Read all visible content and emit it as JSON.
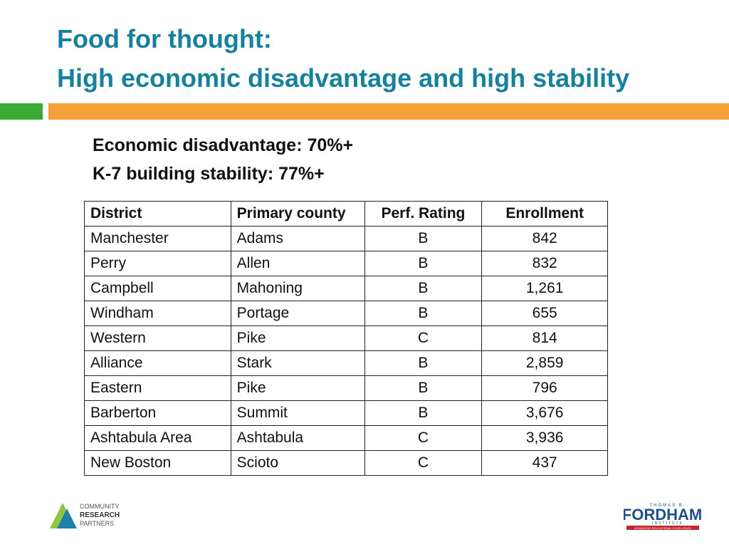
{
  "header": {
    "title_lines": [
      "Food for thought:",
      "High economic disadvantage and high stability"
    ]
  },
  "criteria": [
    "Economic disadvantage: 70%+",
    "K-7 building stability: 77%+"
  ],
  "table": {
    "columns": [
      "District",
      "Primary county",
      "Perf. Rating",
      "Enrollment"
    ],
    "rows": [
      [
        "Manchester",
        "Adams",
        "B",
        "842"
      ],
      [
        "Perry",
        "Allen",
        "B",
        "832"
      ],
      [
        "Campbell",
        "Mahoning",
        "B",
        "1,261"
      ],
      [
        "Windham",
        "Portage",
        "B",
        "655"
      ],
      [
        "Western",
        "Pike",
        "C",
        "814"
      ],
      [
        "Alliance",
        "Stark",
        "B",
        "2,859"
      ],
      [
        "Eastern",
        "Pike",
        "B",
        "796"
      ],
      [
        "Barberton",
        "Summit",
        "B",
        "3,676"
      ],
      [
        "Ashtabula Area",
        "Ashtabula",
        "C",
        "3,936"
      ],
      [
        "New Boston",
        "Scioto",
        "C",
        "437"
      ]
    ]
  },
  "logos": {
    "left": [
      "COMMUNITY",
      "RESEARCH",
      "PARTNERS"
    ],
    "right": {
      "top": "THOMAS B.",
      "name": "FORDHAM",
      "sub": "INSTITUTE",
      "tagline": "ADVANCING EDUCATIONAL EXCELLENCE"
    }
  }
}
